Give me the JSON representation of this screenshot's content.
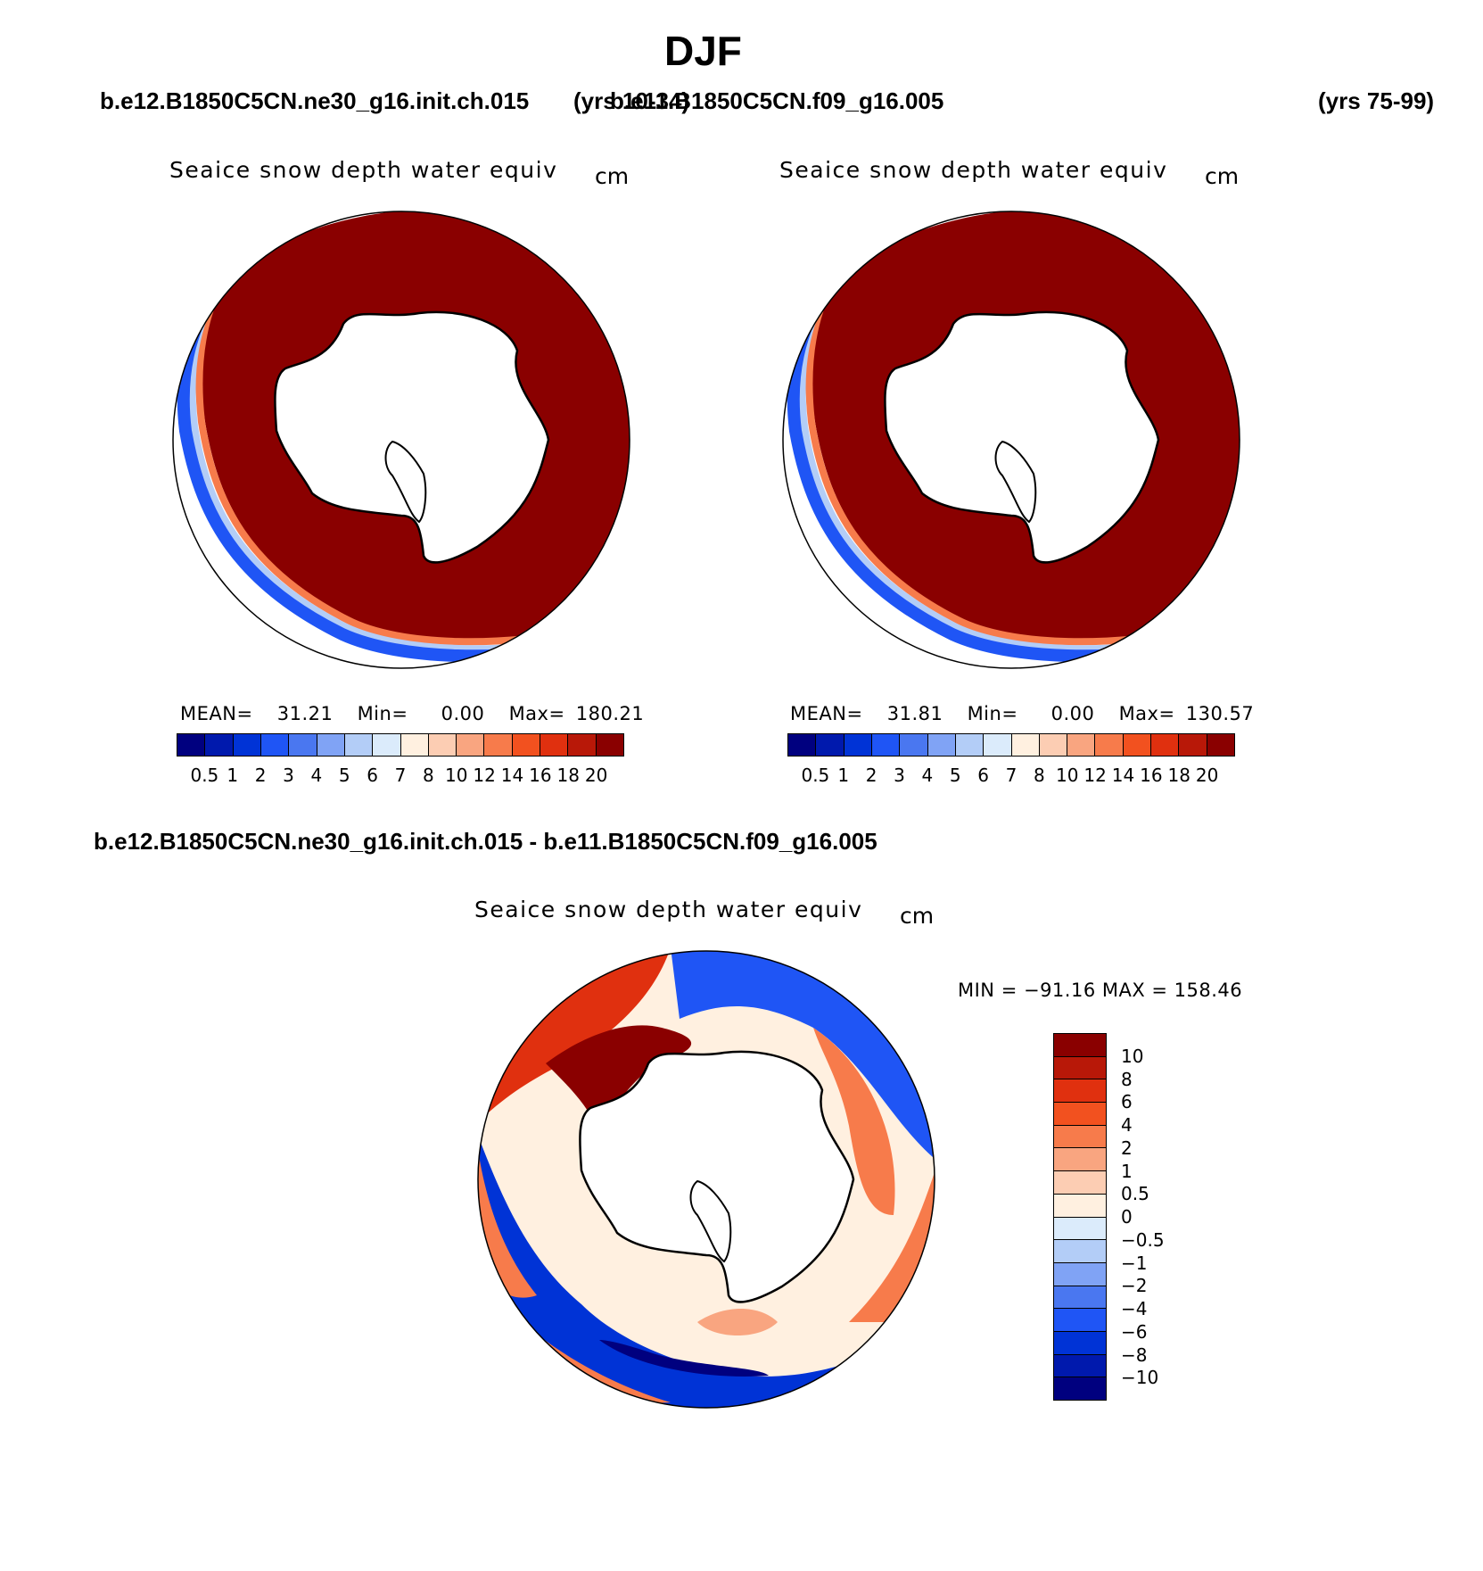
{
  "season": "DJF",
  "header": {
    "case1": "b.e12.B1850C5CN.ne30_g16.init.ch.015",
    "case1_years": "(yrs 10-34)",
    "case2": "b.e11.B1850C5CN.f09_g16.005",
    "case2_years": "(yrs 75-99)"
  },
  "diff_header": "b.e12.B1850C5CN.ne30_g16.init.ch.015 - b.e11.B1850C5CN.f09_g16.005",
  "panels": [
    {
      "title": "Seaice snow depth water equiv",
      "units": "cm",
      "stats": {
        "mean_label": "MEAN=",
        "mean": "31.21",
        "min_label": "Min=",
        "min": "0.00",
        "max_label": "Max=",
        "max": "180.21"
      }
    },
    {
      "title": "Seaice snow depth water equiv",
      "units": "cm",
      "stats": {
        "mean_label": "MEAN=",
        "mean": "31.81",
        "min_label": "Min=",
        "min": "0.00",
        "max_label": "Max=",
        "max": "130.57"
      }
    }
  ],
  "diff_panel": {
    "title": "Seaice snow depth water equiv",
    "units": "cm",
    "minmax": "MIN = −91.16 MAX = 158.46"
  },
  "abs_colorbar": {
    "colors": [
      "#00007f",
      "#0019ad",
      "#0033d6",
      "#1f55f5",
      "#4a77f0",
      "#80a3f5",
      "#b3cdf7",
      "#dbebfb",
      "#fff0e0",
      "#fccdb3",
      "#f9a580",
      "#f77b4b",
      "#f2511f",
      "#e0300f",
      "#b81808",
      "#8a0000"
    ],
    "labels": [
      "0.5",
      "1",
      "2",
      "3",
      "4",
      "5",
      "6",
      "7",
      "8",
      "10",
      "12",
      "14",
      "16",
      "18",
      "20"
    ]
  },
  "diff_colorbar": {
    "colors": [
      "#8a0000",
      "#b81808",
      "#e0300f",
      "#f2511f",
      "#f77b4b",
      "#f9a580",
      "#fccdb3",
      "#fff0e0",
      "#dbebfb",
      "#b3cdf7",
      "#80a3f5",
      "#4a77f0",
      "#1f55f5",
      "#0033d6",
      "#0019ad",
      "#00007f"
    ],
    "labels": [
      "10",
      "8",
      "6",
      "4",
      "2",
      "1",
      "0.5",
      "0",
      "−0.5",
      "−1",
      "−2",
      "−4",
      "−6",
      "−8",
      "−10"
    ]
  }
}
